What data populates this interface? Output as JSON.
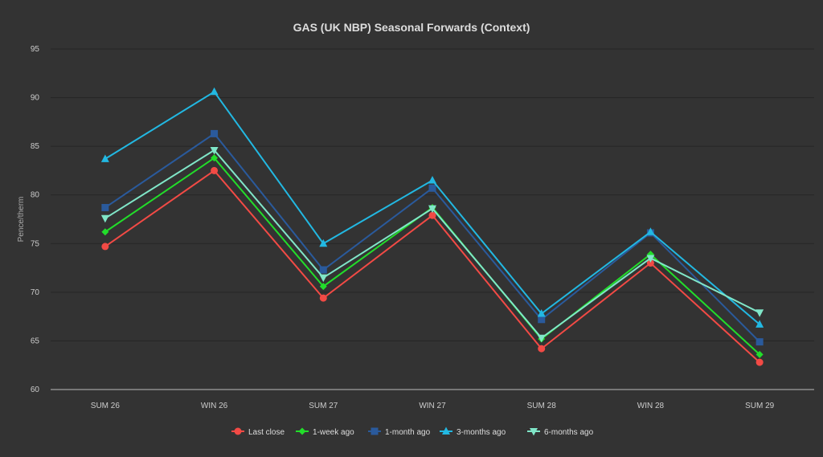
{
  "chart_data": {
    "type": "line",
    "title": "GAS (UK NBP) Seasonal Forwards (Context)",
    "xlabel": "",
    "ylabel": "Pence/therm",
    "ylim": [
      60,
      95
    ],
    "yticks": [
      60,
      65,
      70,
      75,
      80,
      85,
      90,
      95
    ],
    "grid": true,
    "legend": "bottom-center",
    "categories": [
      "SUM 26",
      "WIN 26",
      "SUM 27",
      "WIN 27",
      "SUM 28",
      "WIN 28",
      "SUM 29"
    ],
    "series": [
      {
        "name": "Last close",
        "color": "#f24a45",
        "marker": "circle",
        "values": [
          74.7,
          82.5,
          69.4,
          77.9,
          64.2,
          73.0,
          62.8
        ]
      },
      {
        "name": "1-week ago",
        "color": "#22dd2a",
        "marker": "diamond",
        "values": [
          76.2,
          83.8,
          70.6,
          78.7,
          65.2,
          73.9,
          63.6
        ]
      },
      {
        "name": "1-month ago",
        "color": "#2a5a9c",
        "marker": "square",
        "values": [
          78.7,
          86.3,
          72.3,
          80.7,
          67.2,
          76.1,
          64.9
        ]
      },
      {
        "name": "3-months ago",
        "color": "#22b8e2",
        "marker": "triangle",
        "values": [
          83.7,
          90.6,
          75.0,
          81.5,
          67.8,
          76.2,
          66.7
        ]
      },
      {
        "name": "6-months ago",
        "color": "#80e6c8",
        "marker": "triangle-down",
        "values": [
          77.6,
          84.6,
          71.5,
          78.6,
          65.3,
          73.5,
          67.9
        ]
      }
    ]
  }
}
